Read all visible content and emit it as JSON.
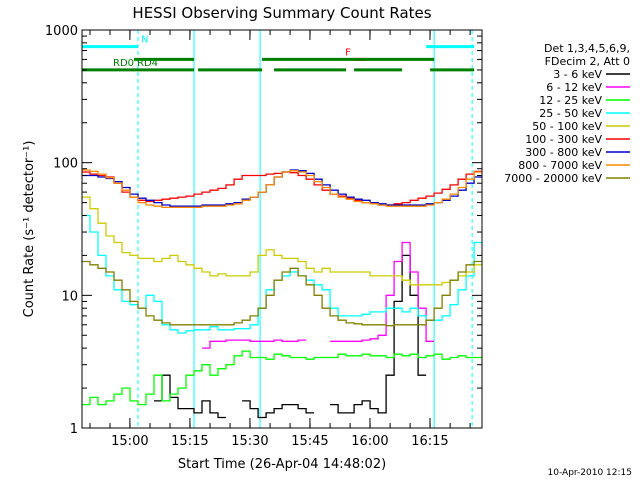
{
  "chart_data": {
    "type": "line",
    "title": "HESSI Observing Summary Count Rates",
    "xlabel": "Start Time (26-Apr-04 14:48:02)",
    "ylabel": "Count Rate (s⁻¹ detector⁻¹)",
    "yscale": "log",
    "ylim": [
      1,
      1000
    ],
    "xlim": [
      "14:48:02",
      "16:28:00"
    ],
    "x_ticks": [
      "15:00",
      "15:15",
      "15:30",
      "15:45",
      "16:00",
      "16:15"
    ],
    "y_ticks": [
      "1",
      "10",
      "100",
      "1000"
    ],
    "grid": false,
    "legend_position": "right",
    "legend_header": [
      "Det 1,3,4,5,6,9,",
      "FDecim 2, Att 0"
    ],
    "footer_date": "10-Apr-2010 12:15",
    "x_minutes": [
      0,
      2,
      4,
      6,
      8,
      10,
      12,
      14,
      16,
      18,
      20,
      22,
      24,
      26,
      28,
      30,
      32,
      34,
      36,
      38,
      40,
      42,
      44,
      46,
      48,
      50,
      52,
      54,
      56,
      58,
      60,
      62,
      64,
      66,
      68,
      70,
      72,
      74,
      76,
      78,
      80,
      82,
      84,
      86,
      88,
      90,
      92,
      94,
      96,
      98
    ],
    "series": [
      {
        "name": "3 - 6 keV",
        "color": "#000000",
        "values": [
          null,
          null,
          null,
          null,
          null,
          null,
          null,
          null,
          null,
          1.6,
          2.5,
          1.7,
          1.4,
          1.4,
          1.3,
          1.6,
          1.3,
          1.2,
          null,
          null,
          1.6,
          1.4,
          1.2,
          1.3,
          1.4,
          1.5,
          1.5,
          1.4,
          1.3,
          null,
          null,
          1.5,
          1.3,
          1.3,
          1.5,
          1.6,
          1.4,
          1.3,
          2.5,
          9,
          20,
          10,
          2.5,
          null,
          null,
          null,
          null,
          null,
          null,
          null
        ]
      },
      {
        "name": "6 - 12 keV",
        "color": "#ff00ff",
        "values": [
          null,
          null,
          null,
          null,
          null,
          null,
          null,
          null,
          null,
          null,
          null,
          null,
          null,
          null,
          null,
          4,
          4.5,
          4.5,
          4.6,
          4.6,
          4.6,
          4.5,
          4.5,
          4.5,
          4.6,
          4.5,
          4.5,
          4.6,
          null,
          null,
          null,
          4.5,
          4.5,
          4.5,
          4.5,
          4.6,
          4.7,
          5,
          10,
          18,
          25,
          15,
          8,
          4.5,
          null,
          null,
          null,
          null,
          null,
          null
        ]
      },
      {
        "name": "12 - 25 keV",
        "color": "#00ff00",
        "values": [
          1.5,
          1.7,
          1.5,
          1.6,
          1.8,
          2,
          1.6,
          1.5,
          1.8,
          2.5,
          1.6,
          1.8,
          2,
          2.5,
          2.7,
          3,
          2.5,
          2.8,
          3,
          3.5,
          3.8,
          3.4,
          3.4,
          3.3,
          3.6,
          3.5,
          3.4,
          3.4,
          3.3,
          3.4,
          3.4,
          3.4,
          3.6,
          3.5,
          3.5,
          3.6,
          3.5,
          3.5,
          3.4,
          3.6,
          3.5,
          3.6,
          3.4,
          3.5,
          3.6,
          3.3,
          3.4,
          3.5,
          3.4,
          3.4
        ]
      },
      {
        "name": "25 - 50 keV",
        "color": "#00ffff",
        "values": [
          40,
          30,
          20,
          14,
          11,
          9,
          8.5,
          8,
          10,
          9,
          6,
          5.5,
          5.2,
          5.4,
          5.5,
          5.5,
          5.8,
          5.5,
          5.5,
          5.6,
          5.6,
          6,
          8,
          11,
          13,
          14,
          15,
          14,
          13,
          12,
          11,
          8,
          7,
          7,
          7,
          7.2,
          7.5,
          7.5,
          8,
          8,
          7.5,
          8,
          7,
          6.5,
          6.5,
          7,
          8.5,
          11,
          14,
          25
        ]
      },
      {
        "name": "50 - 100 keV",
        "color": "#cccc00",
        "values": [
          55,
          45,
          35,
          28,
          25,
          21,
          20,
          19,
          19,
          18,
          19,
          20,
          18,
          17,
          16,
          15,
          14,
          14.5,
          14,
          14,
          14,
          15,
          20,
          22,
          20,
          19,
          19,
          18,
          16,
          15,
          16,
          15,
          15,
          15,
          15,
          15,
          14,
          14,
          14,
          14,
          13,
          12,
          12,
          12,
          12,
          12.5,
          13,
          14,
          15,
          17
        ]
      },
      {
        "name": "100 - 300 keV",
        "color": "#ff0000",
        "values": [
          85,
          82,
          80,
          78,
          70,
          60,
          55,
          52,
          51,
          52,
          53,
          54,
          55,
          56,
          58,
          60,
          62,
          64,
          68,
          75,
          80,
          80,
          80,
          82,
          83,
          85,
          84,
          80,
          75,
          68,
          62,
          58,
          56,
          54,
          52,
          50,
          50,
          48,
          48,
          49,
          50,
          52,
          54,
          56,
          59,
          63,
          68,
          75,
          82,
          86
        ]
      },
      {
        "name": "300 - 800 keV",
        "color": "#0000cc",
        "values": [
          80,
          80,
          78,
          76,
          72,
          65,
          58,
          54,
          52,
          50,
          48,
          47,
          47,
          47,
          47,
          48,
          48,
          48,
          49,
          50,
          53,
          55,
          60,
          68,
          78,
          85,
          88,
          87,
          83,
          75,
          68,
          62,
          58,
          55,
          53,
          52,
          50,
          49,
          48,
          48,
          48,
          48,
          48,
          49,
          50,
          52,
          56,
          62,
          70,
          78
        ]
      },
      {
        "name": "800 - 7000 keV",
        "color": "#ff8800",
        "values": [
          88,
          86,
          82,
          77,
          70,
          62,
          55,
          50,
          48,
          47,
          46,
          46,
          46,
          46,
          46,
          47,
          47,
          47,
          48,
          49,
          52,
          55,
          60,
          68,
          78,
          85,
          87,
          85,
          80,
          72,
          65,
          58,
          55,
          53,
          51,
          50,
          49,
          48,
          47,
          47,
          47,
          47,
          47,
          48,
          50,
          53,
          58,
          65,
          75,
          85
        ]
      },
      {
        "name": "7000 - 20000 keV",
        "color": "#808000",
        "values": [
          18,
          17,
          16,
          15,
          13,
          11,
          9,
          8,
          7,
          6.5,
          6.2,
          6,
          6,
          6,
          6,
          6,
          6,
          6,
          6,
          6.2,
          6.5,
          7,
          8,
          10,
          13,
          15,
          16,
          14,
          12,
          10,
          8,
          7,
          6.5,
          6.2,
          6.1,
          6,
          6,
          6,
          5.9,
          6,
          6,
          6,
          6,
          6.5,
          8,
          10,
          13,
          15,
          17,
          18
        ]
      }
    ],
    "segment_bars": [
      {
        "label": "N",
        "color": "#00ffff",
        "level": 750,
        "spans": [
          [
            0,
            14
          ],
          [
            86,
            98
          ]
        ],
        "label_at": 14
      },
      {
        "label": "F",
        "color": "#ff0000",
        "level": 600,
        "spans": [
          [
            68,
            71
          ]
        ],
        "label_at": 65
      },
      {
        "label": "RD0",
        "color": "#008000",
        "level": 500,
        "spans": [
          [
            0,
            13
          ]
        ],
        "label_at": 7
      },
      {
        "label": "RD4",
        "color": "#008000",
        "level": 500,
        "spans": [
          [
            13,
            28
          ],
          [
            29,
            45
          ],
          [
            48,
            66
          ],
          [
            68,
            80
          ],
          [
            87,
            98
          ]
        ],
        "label_at": 13
      },
      {
        "label": "",
        "color": "#008000",
        "level": 600,
        "spans": [
          [
            13,
            28
          ],
          [
            45,
            88
          ]
        ],
        "label_at": null
      }
    ],
    "vlines_solid": [
      28,
      44.5,
      88
    ],
    "vlines_dashed": [
      14,
      97.5
    ]
  }
}
